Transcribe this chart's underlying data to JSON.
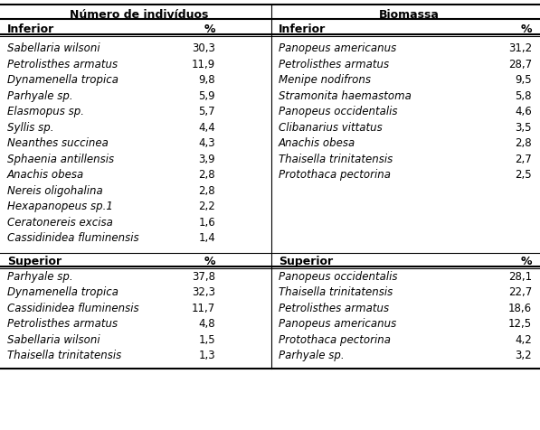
{
  "col_headers": [
    "Número de indivíduos",
    "Biomassa"
  ],
  "section1_header_left": "Inferior",
  "section1_header_right": "Inferior",
  "pct_label": "%",
  "left_inferior": [
    [
      "Sabellaria wilsoni",
      "30,3"
    ],
    [
      "Petrolisthes armatus",
      "11,9"
    ],
    [
      "Dynamenella tropica",
      "9,8"
    ],
    [
      "Parhyale sp.",
      "5,9"
    ],
    [
      "Elasmopus sp.",
      "5,7"
    ],
    [
      "Syllis sp.",
      "4,4"
    ],
    [
      "Neanthes succinea",
      "4,3"
    ],
    [
      "Sphaenia antillensis",
      "3,9"
    ],
    [
      "Anachis obesa",
      "2,8"
    ],
    [
      "Nereis oligohalina",
      "2,8"
    ],
    [
      "Hexapanopeus sp.1",
      "2,2"
    ],
    [
      "Ceratonereis excisa",
      "1,6"
    ],
    [
      "Cassidinidea fluminensis",
      "1,4"
    ]
  ],
  "right_inferior": [
    [
      "Panopeus americanus",
      "31,2"
    ],
    [
      "Petrolisthes armatus",
      "28,7"
    ],
    [
      "Menipe nodifrons",
      "9,5"
    ],
    [
      "Stramonita haemastoma",
      "5,8"
    ],
    [
      "Panopeus occidentalis",
      "4,6"
    ],
    [
      "Clibanarius vittatus",
      "3,5"
    ],
    [
      "Anachis obesa",
      "2,8"
    ],
    [
      "Thaisella trinitatensis",
      "2,7"
    ],
    [
      "Protothaca pectorina",
      "2,5"
    ]
  ],
  "section2_header_left": "Superior",
  "section2_header_right": "Superior",
  "left_superior": [
    [
      "Parhyale sp.",
      "37,8"
    ],
    [
      "Dynamenella tropica",
      "32,3"
    ],
    [
      "Cassidinidea fluminensis",
      "11,7"
    ],
    [
      "Petrolisthes armatus",
      "4,8"
    ],
    [
      "Sabellaria wilsoni",
      "1,5"
    ],
    [
      "Thaisella trinitatensis",
      "1,3"
    ]
  ],
  "right_superior": [
    [
      "Panopeus occidentalis",
      "28,1"
    ],
    [
      "Thaisella trinitatensis",
      "22,7"
    ],
    [
      "Petrolisthes armatus",
      "18,6"
    ],
    [
      "Panopeus americanus",
      "12,5"
    ],
    [
      "Protothaca pectorina",
      "4,2"
    ],
    [
      "Parhyale sp.",
      "3,2"
    ]
  ],
  "figsize": [
    5.97,
    4.77
  ],
  "dpi": 100
}
